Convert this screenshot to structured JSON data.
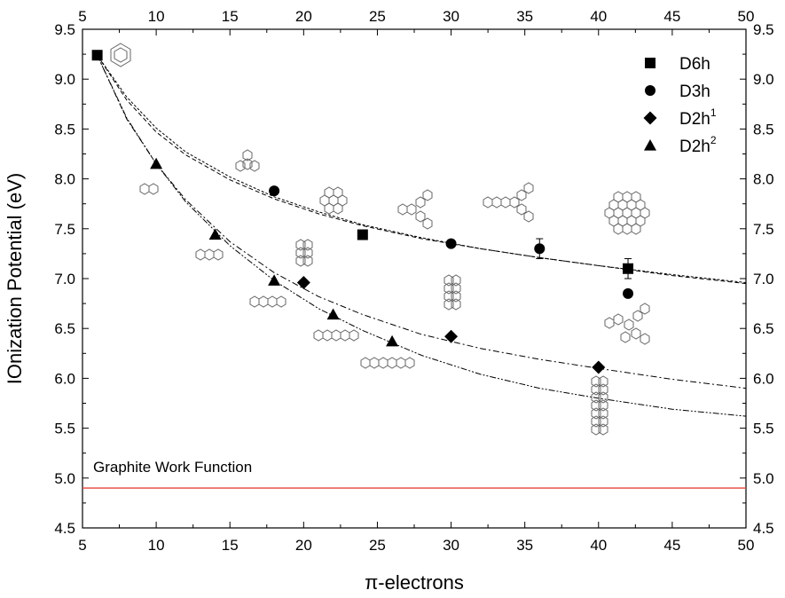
{
  "chart_data": {
    "type": "scatter",
    "title": "",
    "xlabel": "π-electrons",
    "ylabel": "IOnization Potential (eV)",
    "xlim": [
      5,
      50
    ],
    "ylim": [
      4.5,
      9.5
    ],
    "x_ticks": [
      "5",
      "10",
      "15",
      "20",
      "25",
      "30",
      "35",
      "40",
      "45",
      "50"
    ],
    "y_ticks": [
      "4.5",
      "5.0",
      "5.5",
      "6.0",
      "6.5",
      "7.0",
      "7.5",
      "8.0",
      "8.5",
      "9.0",
      "9.5"
    ],
    "grid": false,
    "legend_position": "top-right",
    "series": [
      {
        "name": "D6h",
        "sup": "",
        "marker": "square",
        "points": [
          {
            "x": 6,
            "y": 9.24
          },
          {
            "x": 24,
            "y": 7.44
          },
          {
            "x": 42,
            "y": 7.1,
            "err": 0.1
          }
        ]
      },
      {
        "name": "D3h",
        "sup": "",
        "marker": "circle",
        "points": [
          {
            "x": 18,
            "y": 7.88
          },
          {
            "x": 30,
            "y": 7.35
          },
          {
            "x": 36,
            "y": 7.3,
            "err": 0.1
          },
          {
            "x": 42,
            "y": 6.85
          }
        ]
      },
      {
        "name": "D2h",
        "sup": "1",
        "marker": "diamond",
        "points": [
          {
            "x": 20,
            "y": 6.96
          },
          {
            "x": 30,
            "y": 6.42
          },
          {
            "x": 40,
            "y": 6.11
          }
        ]
      },
      {
        "name": "D2h",
        "sup": "2",
        "marker": "triangle",
        "points": [
          {
            "x": 10,
            "y": 8.15
          },
          {
            "x": 14,
            "y": 7.44
          },
          {
            "x": 18,
            "y": 6.98
          },
          {
            "x": 22,
            "y": 6.64
          },
          {
            "x": 26,
            "y": 6.37
          }
        ]
      }
    ],
    "fit_curves": [
      {
        "style": "dashed",
        "x": [
          6,
          8,
          10,
          12,
          15,
          18,
          21,
          24,
          28,
          32,
          36,
          40,
          45,
          50
        ],
        "y": [
          9.24,
          8.79,
          8.47,
          8.24,
          7.99,
          7.8,
          7.65,
          7.53,
          7.4,
          7.3,
          7.21,
          7.13,
          7.03,
          6.95
        ]
      },
      {
        "style": "short-dashed",
        "x": [
          6,
          8,
          10,
          12,
          15,
          18,
          21,
          24,
          28,
          32,
          36,
          40,
          45,
          50
        ],
        "y": [
          9.24,
          8.82,
          8.51,
          8.27,
          8.02,
          7.82,
          7.67,
          7.54,
          7.41,
          7.3,
          7.21,
          7.13,
          7.04,
          6.96
        ]
      },
      {
        "style": "dash-dot",
        "x": [
          6,
          8,
          10,
          12,
          15,
          18,
          21,
          24,
          28,
          32,
          36,
          40,
          45,
          50
        ],
        "y": [
          9.24,
          8.6,
          8.15,
          7.79,
          7.37,
          7.06,
          6.82,
          6.64,
          6.44,
          6.3,
          6.19,
          6.1,
          5.99,
          5.9
        ]
      },
      {
        "style": "dash-dot-dot",
        "x": [
          6,
          8,
          10,
          12,
          15,
          18,
          21,
          24,
          28,
          32,
          36,
          40,
          45,
          50
        ],
        "y": [
          9.24,
          8.61,
          8.15,
          7.77,
          7.33,
          6.98,
          6.7,
          6.48,
          6.23,
          6.04,
          5.9,
          5.8,
          5.69,
          5.62
        ]
      }
    ],
    "reference_line": {
      "label": "Graphite Work Function",
      "y": 4.9,
      "color": "#e8443a"
    }
  }
}
